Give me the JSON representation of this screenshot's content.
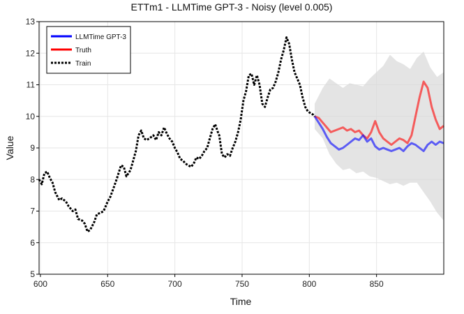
{
  "chart_data": {
    "type": "line",
    "title": "ETTm1 - LLMTime GPT-3 - Noisy (level 0.005)",
    "xlabel": "Time",
    "ylabel": "Value",
    "xlim": [
      599,
      900
    ],
    "ylim": [
      5,
      13
    ],
    "xticks": [
      600,
      650,
      700,
      750,
      800,
      850
    ],
    "yticks": [
      5,
      6,
      7,
      8,
      9,
      10,
      11,
      12,
      13
    ],
    "grid": true,
    "legend_position": "top-left",
    "legend": [
      {
        "label": "LLMTime GPT-3",
        "color": "#0000ff",
        "style": "solid"
      },
      {
        "label": "Truth",
        "color": "#ff0000",
        "style": "solid"
      },
      {
        "label": "Train",
        "color": "#000000",
        "style": "dotted"
      }
    ],
    "train": {
      "name": "Train",
      "x": [
        599,
        601,
        603,
        605,
        607,
        609,
        611,
        614,
        616,
        619,
        621,
        624,
        626,
        628,
        631,
        633,
        635,
        637,
        640,
        642,
        645,
        647,
        650,
        652,
        655,
        657,
        660,
        662,
        664,
        667,
        669,
        671,
        673,
        675,
        677,
        679,
        681,
        684,
        686,
        688,
        690,
        692,
        694,
        696,
        698,
        700,
        702,
        704,
        706,
        708,
        710,
        712,
        714,
        716,
        718,
        720,
        722,
        724,
        726,
        728,
        730,
        732,
        733,
        735,
        737,
        739,
        741,
        743,
        745,
        747,
        749,
        751,
        753,
        755,
        757,
        759,
        761,
        763,
        765,
        767,
        769,
        771,
        773,
        775,
        777,
        779,
        781,
        783,
        785,
        787,
        789,
        791,
        793,
        795,
        797,
        799,
        801,
        803,
        804
      ],
      "y": [
        8.0,
        7.85,
        8.2,
        8.25,
        8.05,
        7.9,
        7.6,
        7.35,
        7.4,
        7.3,
        7.15,
        7.0,
        7.05,
        6.75,
        6.7,
        6.6,
        6.35,
        6.4,
        6.65,
        6.9,
        6.95,
        7.0,
        7.3,
        7.45,
        7.8,
        8.05,
        8.45,
        8.4,
        8.1,
        8.3,
        8.6,
        8.9,
        9.4,
        9.55,
        9.3,
        9.25,
        9.3,
        9.4,
        9.25,
        9.5,
        9.4,
        9.65,
        9.45,
        9.3,
        9.2,
        9.0,
        8.85,
        8.65,
        8.6,
        8.5,
        8.45,
        8.4,
        8.5,
        8.7,
        8.65,
        8.75,
        8.9,
        9.0,
        9.3,
        9.6,
        9.75,
        9.5,
        9.4,
        8.8,
        8.7,
        8.8,
        8.75,
        9.0,
        9.2,
        9.5,
        9.9,
        10.5,
        10.8,
        11.3,
        11.35,
        11.0,
        11.3,
        11.0,
        10.4,
        10.3,
        10.6,
        10.85,
        10.9,
        11.1,
        11.4,
        11.8,
        12.1,
        12.5,
        12.3,
        11.8,
        11.4,
        11.2,
        11.0,
        10.6,
        10.3,
        10.15,
        10.1,
        10.05,
        10.0
      ]
    },
    "forecast": {
      "name": "LLMTime GPT-3",
      "x": [
        804,
        807,
        810,
        813,
        816,
        819,
        822,
        825,
        828,
        831,
        834,
        837,
        840,
        843,
        846,
        849,
        852,
        855,
        858,
        861,
        864,
        867,
        870,
        873,
        876,
        879,
        882,
        885,
        888,
        891,
        894,
        897,
        900
      ],
      "y": [
        10.0,
        9.8,
        9.6,
        9.35,
        9.15,
        9.05,
        8.95,
        9.0,
        9.1,
        9.2,
        9.3,
        9.25,
        9.4,
        9.2,
        9.3,
        9.05,
        8.95,
        9.0,
        8.95,
        8.9,
        8.95,
        9.0,
        8.9,
        9.05,
        9.15,
        9.1,
        9.0,
        8.9,
        9.1,
        9.2,
        9.1,
        9.2,
        9.15
      ]
    },
    "truth": {
      "name": "Truth",
      "x": [
        804,
        807,
        810,
        813,
        816,
        819,
        822,
        825,
        828,
        831,
        834,
        837,
        840,
        843,
        846,
        849,
        852,
        855,
        858,
        861,
        864,
        867,
        870,
        873,
        876,
        879,
        882,
        885,
        888,
        891,
        894,
        897,
        900
      ],
      "y": [
        10.0,
        9.95,
        9.8,
        9.65,
        9.5,
        9.55,
        9.6,
        9.65,
        9.55,
        9.6,
        9.5,
        9.55,
        9.4,
        9.3,
        9.5,
        9.85,
        9.5,
        9.3,
        9.2,
        9.1,
        9.2,
        9.3,
        9.25,
        9.15,
        9.4,
        10.0,
        10.6,
        11.1,
        10.9,
        10.3,
        9.9,
        9.6,
        9.7
      ]
    },
    "band": {
      "name": "Prediction interval",
      "x": [
        804,
        810,
        815,
        820,
        825,
        830,
        835,
        840,
        845,
        850,
        855,
        860,
        865,
        870,
        875,
        880,
        885,
        890,
        895,
        900
      ],
      "upper": [
        10.4,
        10.9,
        11.2,
        11.05,
        10.9,
        11.05,
        11.0,
        10.95,
        11.2,
        11.4,
        11.6,
        11.95,
        11.75,
        11.65,
        11.5,
        11.85,
        12.05,
        11.55,
        11.25,
        11.4
      ],
      "lower": [
        9.6,
        9.3,
        8.8,
        8.5,
        8.3,
        8.35,
        8.2,
        8.25,
        8.1,
        8.05,
        7.95,
        7.85,
        7.9,
        7.8,
        7.9,
        7.9,
        7.6,
        7.3,
        6.95,
        6.7
      ]
    }
  }
}
